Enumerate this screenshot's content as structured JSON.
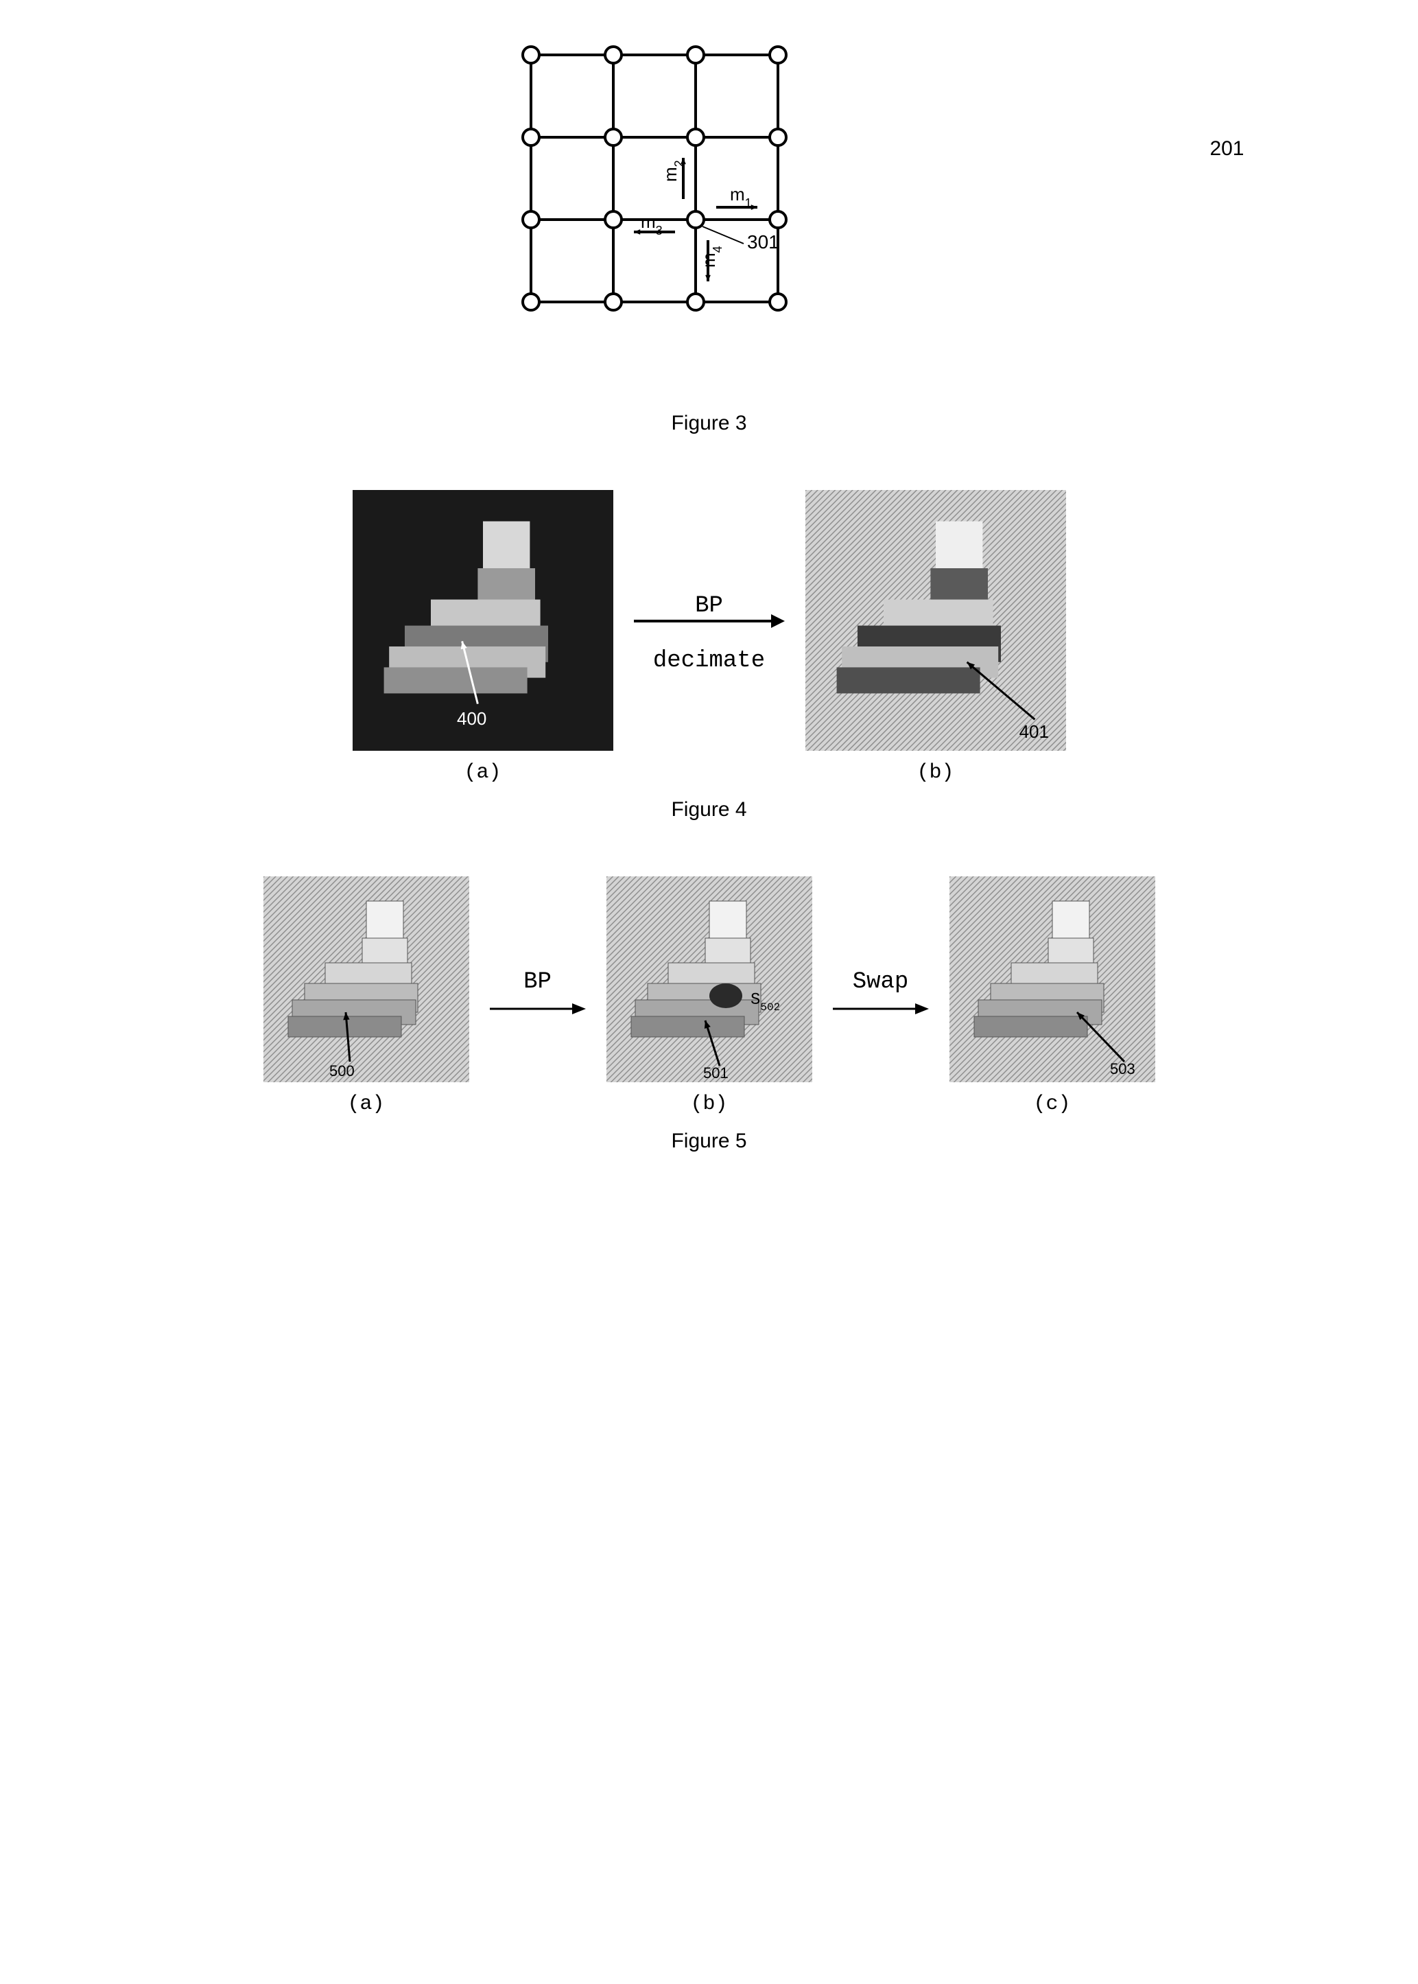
{
  "fig3": {
    "caption": "Figure 3",
    "side_label": "201",
    "node_label": "301",
    "grid": {
      "cols": 4,
      "rows": 4,
      "spacing": 120,
      "node_radius": 12,
      "stroke_width": 4,
      "stroke_color": "#000000",
      "fill_color": "#ffffff"
    },
    "messages": [
      {
        "id": "m1",
        "label": "m",
        "sub": "1",
        "from_col": 2,
        "from_row": 2,
        "dir": "right"
      },
      {
        "id": "m2",
        "label": "m",
        "sub": "2",
        "from_col": 2,
        "from_row": 2,
        "dir": "up"
      },
      {
        "id": "m3",
        "label": "m",
        "sub": "3",
        "from_col": 2,
        "from_row": 2,
        "dir": "left"
      },
      {
        "id": "m4",
        "label": "m",
        "sub": "4",
        "from_col": 2,
        "from_row": 2,
        "dir": "down"
      }
    ]
  },
  "fig4": {
    "caption": "Figure 4",
    "arrow_label_top": "BP",
    "arrow_label_bottom": "decimate",
    "panel_a": {
      "sub": "(a)",
      "ref": "400",
      "bg": "#1a1a1a",
      "size": 380
    },
    "panel_b": {
      "sub": "(b)",
      "ref": "401",
      "bg": "#9a9a9a",
      "size": 380
    }
  },
  "fig5": {
    "caption": "Figure 5",
    "arrow1_label": "BP",
    "arrow2_label": "Swap",
    "extra_label": "S",
    "extra_label_sub": "502",
    "panel_a": {
      "sub": "(a)",
      "ref": "500",
      "size": 300
    },
    "panel_b": {
      "sub": "(b)",
      "ref": "501",
      "size": 300
    },
    "panel_c": {
      "sub": "(c)",
      "ref": "503",
      "size": 300
    }
  },
  "colors": {
    "hatch_light": "#bfbfbf",
    "hatch_dark": "#6f6f6f",
    "shape_light": "#e6e6e6",
    "shape_dark": "#3a3a3a"
  }
}
